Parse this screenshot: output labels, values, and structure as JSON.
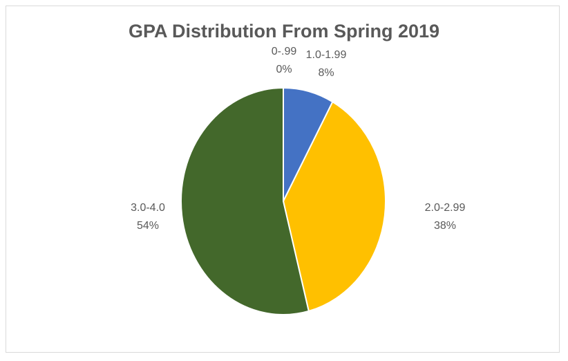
{
  "chart_data": {
    "type": "pie",
    "title": "GPA Distribution From Spring 2019",
    "categories": [
      "0-.99",
      "1.0-1.99",
      "2.0-2.99",
      "3.0-4.0"
    ],
    "values": [
      0,
      8,
      38,
      54
    ],
    "value_labels": [
      "0%",
      "8%",
      "38%",
      "54%"
    ],
    "colors": [
      "#ED7D31",
      "#4472C4",
      "#FFC000",
      "#43682B"
    ],
    "start_angle_deg": 0,
    "direction": "clockwise",
    "legend": "none"
  }
}
